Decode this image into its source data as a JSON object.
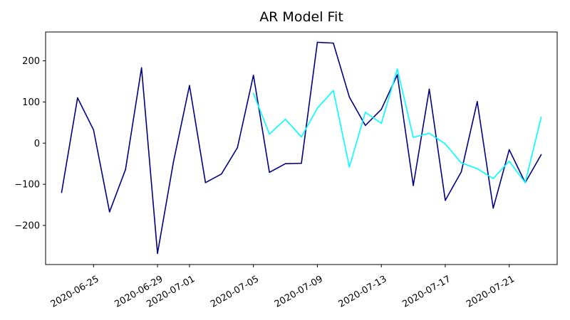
{
  "chart_data": {
    "type": "line",
    "title": "AR Model Fit",
    "xlabel": "",
    "ylabel": "",
    "x_type": "date",
    "xlim": [
      "2020-06-22",
      "2020-07-24"
    ],
    "ylim": [
      -295,
      270
    ],
    "yticks": [
      -200,
      -100,
      0,
      100,
      200
    ],
    "xticks": [
      "2020-06-25",
      "2020-06-29",
      "2020-07-01",
      "2020-07-05",
      "2020-07-09",
      "2020-07-13",
      "2020-07-17",
      "2020-07-21"
    ],
    "x_tick_rotation_deg": 30,
    "grid": false,
    "legend": "none",
    "series": [
      {
        "color": "#000080",
        "x": [
          "2020-06-23",
          "2020-06-24",
          "2020-06-25",
          "2020-06-26",
          "2020-06-27",
          "2020-06-28",
          "2020-06-29",
          "2020-06-30",
          "2020-07-01",
          "2020-07-02",
          "2020-07-03",
          "2020-07-04",
          "2020-07-05",
          "2020-07-06",
          "2020-07-07",
          "2020-07-08",
          "2020-07-09",
          "2020-07-10",
          "2020-07-11",
          "2020-07-12",
          "2020-07-13",
          "2020-07-14",
          "2020-07-15",
          "2020-07-16",
          "2020-07-17",
          "2020-07-18",
          "2020-07-19",
          "2020-07-20",
          "2020-07-21",
          "2020-07-22",
          "2020-07-23"
        ],
        "values": [
          -120,
          110,
          32,
          -167,
          -64,
          183,
          -268,
          -45,
          140,
          -96,
          -75,
          -11,
          165,
          -71,
          -50,
          -49,
          245,
          243,
          112,
          43,
          82,
          166,
          -103,
          131,
          -139,
          -70,
          101,
          -158,
          -16,
          -96,
          -28
        ]
      },
      {
        "color": "#00ffff",
        "x": [
          "2020-07-05",
          "2020-07-06",
          "2020-07-07",
          "2020-07-08",
          "2020-07-09",
          "2020-07-10",
          "2020-07-11",
          "2020-07-12",
          "2020-07-13",
          "2020-07-14",
          "2020-07-15",
          "2020-07-16",
          "2020-07-17",
          "2020-07-18",
          "2020-07-19",
          "2020-07-20",
          "2020-07-21",
          "2020-07-22",
          "2020-07-23"
        ],
        "values": [
          121,
          22,
          58,
          15,
          85,
          128,
          -58,
          75,
          48,
          180,
          14,
          24,
          -2,
          -48,
          -62,
          -86,
          -44,
          -96,
          63
        ]
      }
    ]
  }
}
